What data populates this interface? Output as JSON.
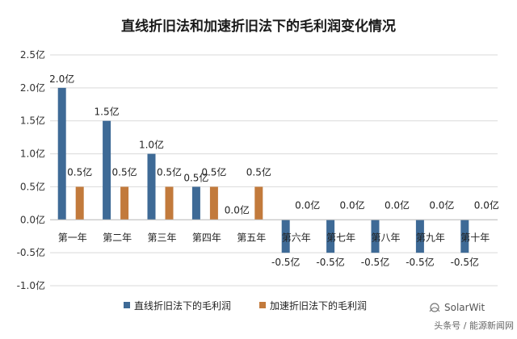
{
  "chart_data": {
    "type": "bar",
    "title": "直线折旧法和加速折旧法下的毛利润变化情况",
    "categories": [
      "第一年",
      "第二年",
      "第三年",
      "第四年",
      "第五年",
      "第六年",
      "第七年",
      "第八年",
      "第九年",
      "第十年"
    ],
    "series": [
      {
        "name": "直线折旧法下的毛利润",
        "color": "#3e6a96",
        "values": [
          2.0,
          1.5,
          1.0,
          0.5,
          0.0,
          -0.5,
          -0.5,
          -0.5,
          -0.5,
          -0.5
        ],
        "labels": [
          "2.0亿",
          "1.5亿",
          "1.0亿",
          "0.5亿",
          "0.0亿",
          "-0.5亿",
          "-0.5亿",
          "-0.5亿",
          "-0.5亿",
          "-0.5亿"
        ]
      },
      {
        "name": "加速折旧法下的毛利润",
        "color": "#c27a3c",
        "values": [
          0.5,
          0.5,
          0.5,
          0.5,
          0.5,
          0.0,
          0.0,
          0.0,
          0.0,
          0.0
        ],
        "labels": [
          "0.5亿",
          "0.5亿",
          "0.5亿",
          "0.5亿",
          "0.5亿",
          "0.0亿",
          "0.0亿",
          "0.0亿",
          "0.0亿",
          "0.0亿"
        ]
      }
    ],
    "yticks": [
      "2.5亿",
      "2.0亿",
      "1.5亿",
      "1.0亿",
      "0.5亿",
      "0.0亿",
      "-0.5亿",
      "-1.0亿"
    ],
    "ylim": [
      -1.0,
      2.5
    ],
    "xlabel": "",
    "ylabel": "",
    "grid": true,
    "legend": "bottom-left"
  },
  "watermark": {
    "brand": "SolarWit",
    "source": "头条号 / 能源新闻网"
  }
}
